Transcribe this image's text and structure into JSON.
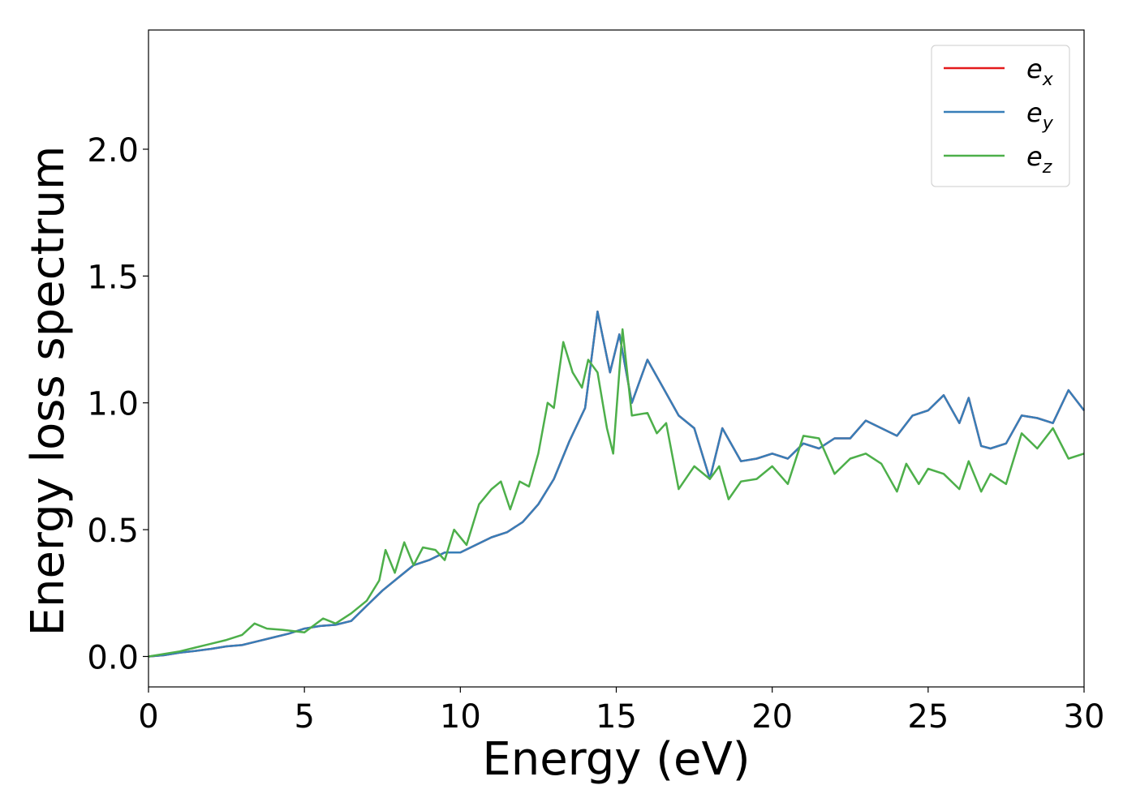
{
  "chart_data": {
    "type": "line",
    "title": "",
    "xlabel": "Energy (eV)",
    "ylabel": "Energy loss spectrum",
    "xlim": [
      0,
      30
    ],
    "ylim": [
      -0.12,
      2.47
    ],
    "xticks": [
      0,
      5,
      10,
      15,
      20,
      25,
      30
    ],
    "xtick_labels": [
      "0",
      "5",
      "10",
      "15",
      "20",
      "25",
      "30"
    ],
    "yticks": [
      0.0,
      0.5,
      1.0,
      1.5,
      2.0
    ],
    "ytick_labels": [
      "0.0",
      "0.5",
      "1.0",
      "1.5",
      "2.0"
    ],
    "grid": false,
    "legend_position": "top-right",
    "series": [
      {
        "name": "e_x",
        "legend_base": "e",
        "legend_sub": "x",
        "color": "#e41a1c",
        "points": [
          [
            0,
            0
          ],
          [
            0.5,
            0.005
          ],
          [
            1,
            0.015
          ],
          [
            1.5,
            0.022
          ],
          [
            2,
            0.03
          ],
          [
            2.5,
            0.04
          ],
          [
            3,
            0.045
          ],
          [
            3.5,
            0.06
          ],
          [
            4,
            0.075
          ],
          [
            4.5,
            0.09
          ],
          [
            5,
            0.11
          ],
          [
            5.5,
            0.12
          ],
          [
            6,
            0.125
          ],
          [
            6.5,
            0.14
          ],
          [
            7,
            0.2
          ],
          [
            7.5,
            0.26
          ],
          [
            8,
            0.31
          ],
          [
            8.5,
            0.36
          ],
          [
            9,
            0.38
          ],
          [
            9.5,
            0.41
          ],
          [
            10,
            0.41
          ],
          [
            10.5,
            0.44
          ],
          [
            11,
            0.47
          ],
          [
            11.5,
            0.49
          ],
          [
            12,
            0.53
          ],
          [
            12.5,
            0.6
          ],
          [
            13,
            0.7
          ],
          [
            13.5,
            0.85
          ],
          [
            14,
            0.98
          ],
          [
            14.4,
            1.36
          ],
          [
            14.8,
            1.12
          ],
          [
            15.1,
            1.27
          ],
          [
            15.5,
            1.0
          ],
          [
            16,
            1.17
          ],
          [
            16.5,
            1.06
          ],
          [
            17,
            0.95
          ],
          [
            17.5,
            0.9
          ],
          [
            18,
            0.7
          ],
          [
            18.4,
            0.9
          ],
          [
            19,
            0.77
          ],
          [
            19.5,
            0.78
          ],
          [
            20,
            0.8
          ],
          [
            20.5,
            0.78
          ],
          [
            21,
            0.84
          ],
          [
            21.5,
            0.82
          ],
          [
            22,
            0.86
          ],
          [
            22.5,
            0.86
          ],
          [
            23,
            0.93
          ],
          [
            23.5,
            0.9
          ],
          [
            24,
            0.87
          ],
          [
            24.5,
            0.95
          ],
          [
            25,
            0.97
          ],
          [
            25.5,
            1.03
          ],
          [
            26,
            0.92
          ],
          [
            26.3,
            1.02
          ],
          [
            26.7,
            0.83
          ],
          [
            27,
            0.82
          ],
          [
            27.5,
            0.84
          ],
          [
            28,
            0.95
          ],
          [
            28.5,
            0.94
          ],
          [
            29,
            0.92
          ],
          [
            29.5,
            1.05
          ],
          [
            30,
            0.97
          ]
        ]
      },
      {
        "name": "e_y",
        "legend_base": "e",
        "legend_sub": "y",
        "color": "#377eb8",
        "points": [
          [
            0,
            0
          ],
          [
            0.5,
            0.005
          ],
          [
            1,
            0.015
          ],
          [
            1.5,
            0.022
          ],
          [
            2,
            0.03
          ],
          [
            2.5,
            0.04
          ],
          [
            3,
            0.045
          ],
          [
            3.5,
            0.06
          ],
          [
            4,
            0.075
          ],
          [
            4.5,
            0.09
          ],
          [
            5,
            0.11
          ],
          [
            5.5,
            0.12
          ],
          [
            6,
            0.125
          ],
          [
            6.5,
            0.14
          ],
          [
            7,
            0.2
          ],
          [
            7.5,
            0.26
          ],
          [
            8,
            0.31
          ],
          [
            8.5,
            0.36
          ],
          [
            9,
            0.38
          ],
          [
            9.5,
            0.41
          ],
          [
            10,
            0.41
          ],
          [
            10.5,
            0.44
          ],
          [
            11,
            0.47
          ],
          [
            11.5,
            0.49
          ],
          [
            12,
            0.53
          ],
          [
            12.5,
            0.6
          ],
          [
            13,
            0.7
          ],
          [
            13.5,
            0.85
          ],
          [
            14,
            0.98
          ],
          [
            14.4,
            1.36
          ],
          [
            14.8,
            1.12
          ],
          [
            15.1,
            1.27
          ],
          [
            15.5,
            1.0
          ],
          [
            16,
            1.17
          ],
          [
            16.5,
            1.06
          ],
          [
            17,
            0.95
          ],
          [
            17.5,
            0.9
          ],
          [
            18,
            0.7
          ],
          [
            18.4,
            0.9
          ],
          [
            19,
            0.77
          ],
          [
            19.5,
            0.78
          ],
          [
            20,
            0.8
          ],
          [
            20.5,
            0.78
          ],
          [
            21,
            0.84
          ],
          [
            21.5,
            0.82
          ],
          [
            22,
            0.86
          ],
          [
            22.5,
            0.86
          ],
          [
            23,
            0.93
          ],
          [
            23.5,
            0.9
          ],
          [
            24,
            0.87
          ],
          [
            24.5,
            0.95
          ],
          [
            25,
            0.97
          ],
          [
            25.5,
            1.03
          ],
          [
            26,
            0.92
          ],
          [
            26.3,
            1.02
          ],
          [
            26.7,
            0.83
          ],
          [
            27,
            0.82
          ],
          [
            27.5,
            0.84
          ],
          [
            28,
            0.95
          ],
          [
            28.5,
            0.94
          ],
          [
            29,
            0.92
          ],
          [
            29.5,
            1.05
          ],
          [
            30,
            0.97
          ]
        ]
      },
      {
        "name": "e_z",
        "legend_base": "e",
        "legend_sub": "z",
        "color": "#4daf4a",
        "points": [
          [
            0,
            0
          ],
          [
            0.5,
            0.01
          ],
          [
            1,
            0.02
          ],
          [
            1.5,
            0.035
          ],
          [
            2,
            0.05
          ],
          [
            2.5,
            0.065
          ],
          [
            3,
            0.085
          ],
          [
            3.4,
            0.13
          ],
          [
            3.8,
            0.11
          ],
          [
            4.3,
            0.105
          ],
          [
            5,
            0.095
          ],
          [
            5.6,
            0.15
          ],
          [
            6,
            0.13
          ],
          [
            6.5,
            0.17
          ],
          [
            7,
            0.22
          ],
          [
            7.4,
            0.3
          ],
          [
            7.6,
            0.42
          ],
          [
            7.9,
            0.33
          ],
          [
            8.2,
            0.45
          ],
          [
            8.5,
            0.36
          ],
          [
            8.8,
            0.43
          ],
          [
            9.2,
            0.42
          ],
          [
            9.5,
            0.38
          ],
          [
            9.8,
            0.5
          ],
          [
            10.2,
            0.44
          ],
          [
            10.6,
            0.6
          ],
          [
            11,
            0.66
          ],
          [
            11.3,
            0.69
          ],
          [
            11.6,
            0.58
          ],
          [
            11.9,
            0.69
          ],
          [
            12.2,
            0.67
          ],
          [
            12.5,
            0.8
          ],
          [
            12.8,
            1.0
          ],
          [
            13.0,
            0.98
          ],
          [
            13.3,
            1.24
          ],
          [
            13.6,
            1.12
          ],
          [
            13.9,
            1.06
          ],
          [
            14.1,
            1.17
          ],
          [
            14.4,
            1.12
          ],
          [
            14.7,
            0.9
          ],
          [
            14.9,
            0.8
          ],
          [
            15.2,
            1.29
          ],
          [
            15.5,
            0.95
          ],
          [
            16,
            0.96
          ],
          [
            16.3,
            0.88
          ],
          [
            16.6,
            0.92
          ],
          [
            17,
            0.66
          ],
          [
            17.5,
            0.75
          ],
          [
            18,
            0.7
          ],
          [
            18.3,
            0.75
          ],
          [
            18.6,
            0.62
          ],
          [
            19,
            0.69
          ],
          [
            19.5,
            0.7
          ],
          [
            20,
            0.75
          ],
          [
            20.5,
            0.68
          ],
          [
            21,
            0.87
          ],
          [
            21.5,
            0.86
          ],
          [
            22,
            0.72
          ],
          [
            22.5,
            0.78
          ],
          [
            23,
            0.8
          ],
          [
            23.5,
            0.76
          ],
          [
            24,
            0.65
          ],
          [
            24.3,
            0.76
          ],
          [
            24.7,
            0.68
          ],
          [
            25,
            0.74
          ],
          [
            25.5,
            0.72
          ],
          [
            26,
            0.66
          ],
          [
            26.3,
            0.77
          ],
          [
            26.7,
            0.65
          ],
          [
            27,
            0.72
          ],
          [
            27.5,
            0.68
          ],
          [
            28,
            0.88
          ],
          [
            28.5,
            0.82
          ],
          [
            29,
            0.9
          ],
          [
            29.5,
            0.78
          ],
          [
            30,
            0.8
          ]
        ]
      }
    ]
  }
}
